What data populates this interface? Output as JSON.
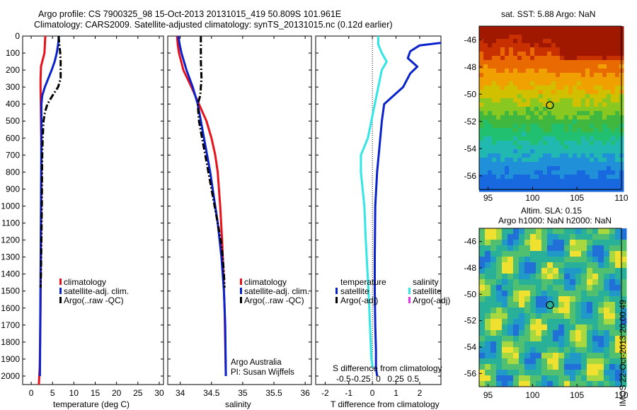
{
  "header": {
    "line1": "Argo profile: CS 7900325_98 15-Oct-2013 20131015_419 50.809S 101.961E",
    "line2": "Climatology: CARS2009. Satellite-adjusted climatology: synTS_20131015.nc (0.12d earlier)"
  },
  "map_sst": {
    "title": "sat. SST: 5.88 Argo: NaN"
  },
  "map_sla": {
    "title1": "Altim. SLA: 0.15",
    "title2": "Argo h1000: NaN h2000: NaN"
  },
  "stamp": "IMOS 22-Oct-2013 20:00:49",
  "credits": {
    "line1": "Argo Australia",
    "line2": "PI: Susan Wijffels"
  },
  "colors": {
    "climatology": "#e8101a",
    "satellite": "#0a22cc",
    "argo": "#000000",
    "sat_salinity": "#33e6e6",
    "argo_salinity": "#e633e6"
  },
  "legend_ts": [
    {
      "label": "climatology",
      "color": "#e8101a"
    },
    {
      "label": "satellite-adj. clim.",
      "color": "#0a22cc"
    },
    {
      "label": "Argo(..raw -QC)",
      "color": "#000000"
    }
  ],
  "legend_diff": {
    "temperature_header": "temperature",
    "salinity_header": "salinity",
    "t_items": [
      {
        "label": "satellite",
        "color": "#0a22cc"
      },
      {
        "label": "Argo(-adj)",
        "color": "#000000"
      }
    ],
    "s_items": [
      {
        "label": "satellite",
        "color": "#33e6e6"
      },
      {
        "label": "Argo(-adj)",
        "color": "#e633e6"
      }
    ]
  },
  "chart_data": [
    {
      "type": "line",
      "xlabel": "temperature (deg C)",
      "xlim": [
        -2,
        31
      ],
      "xticks": [
        "0",
        "5",
        "10",
        "15",
        "20",
        "25",
        "30"
      ],
      "ylim": [
        0,
        2050
      ],
      "yreversed": true,
      "yticks": [
        "0",
        "100",
        "200",
        "300",
        "400",
        "500",
        "600",
        "700",
        "800",
        "900",
        "1000",
        "1100",
        "1200",
        "1300",
        "1400",
        "1500",
        "1600",
        "1700",
        "1800",
        "1900",
        "2000"
      ],
      "series": [
        {
          "name": "climatology",
          "color": "#e8101a",
          "style": "solid",
          "x": [
            3.3,
            3.2,
            3.1,
            2.3,
            2.2,
            2.2,
            2.25,
            2.3,
            2.35,
            2.4,
            2.4,
            2.35,
            2.3,
            2.25,
            2.2,
            2.1,
            2.0,
            1.8
          ],
          "y": [
            0,
            50,
            100,
            180,
            250,
            300,
            400,
            500,
            600,
            700,
            800,
            1000,
            1200,
            1400,
            1600,
            1800,
            1950,
            2050
          ]
        },
        {
          "name": "satellite-adj. clim.",
          "color": "#0a22cc",
          "style": "solid",
          "x": [
            6.5,
            6.3,
            6.0,
            5.5,
            4.8,
            4.0,
            3.2,
            2.6,
            2.4,
            2.4,
            2.4,
            2.35,
            2.3,
            2.25,
            2.2,
            2.15,
            2.1,
            2.05
          ],
          "y": [
            0,
            50,
            100,
            150,
            200,
            250,
            300,
            350,
            400,
            500,
            600,
            800,
            1000,
            1200,
            1400,
            1600,
            1800,
            2000
          ]
        },
        {
          "name": "Argo(..raw -QC)",
          "color": "#000000",
          "style": "dashdot",
          "x": [
            6.4,
            6.6,
            6.8,
            6.9,
            6.9,
            6.3,
            5.0,
            3.8,
            3.2,
            2.9,
            2.7,
            2.6,
            2.55,
            2.5,
            2.4,
            2.3,
            2.2
          ],
          "y": [
            0,
            50,
            100,
            150,
            250,
            300,
            350,
            400,
            450,
            500,
            600,
            700,
            800,
            1000,
            1200,
            1400,
            1480
          ]
        }
      ]
    },
    {
      "type": "line",
      "xlabel": "salinity",
      "xlim": [
        33.8,
        36.1
      ],
      "xticks": [
        "34",
        "34.5",
        "35",
        "35.5",
        "36"
      ],
      "ylim": [
        0,
        2050
      ],
      "yreversed": true,
      "series": [
        {
          "name": "climatology",
          "color": "#e8101a",
          "style": "solid",
          "x": [
            33.95,
            33.96,
            33.98,
            34.05,
            34.18,
            34.3,
            34.42,
            34.5,
            34.56,
            34.6,
            34.64,
            34.67,
            34.69,
            34.71,
            34.72,
            34.73
          ],
          "y": [
            0,
            50,
            100,
            200,
            300,
            400,
            500,
            600,
            700,
            800,
            1000,
            1200,
            1400,
            1600,
            1800,
            2000
          ]
        },
        {
          "name": "satellite-adj. clim.",
          "color": "#0a22cc",
          "style": "solid",
          "x": [
            33.97,
            33.99,
            34.02,
            34.1,
            34.2,
            34.28,
            34.33,
            34.38,
            34.43,
            34.48,
            34.52,
            34.6,
            34.66,
            34.7,
            34.72,
            34.73
          ],
          "y": [
            0,
            50,
            100,
            200,
            300,
            400,
            500,
            600,
            700,
            800,
            900,
            1100,
            1300,
            1500,
            1700,
            2000
          ]
        },
        {
          "name": "Argo(..raw -QC)",
          "color": "#000000",
          "style": "dashdot",
          "x": [
            34.33,
            34.33,
            34.33,
            34.34,
            34.32,
            34.28,
            34.3,
            34.35,
            34.4,
            34.45,
            34.5,
            34.55,
            34.6,
            34.65,
            34.68,
            34.7,
            34.71
          ],
          "y": [
            0,
            50,
            150,
            250,
            350,
            400,
            500,
            600,
            700,
            800,
            900,
            1000,
            1100,
            1200,
            1300,
            1400,
            1480
          ]
        }
      ]
    },
    {
      "type": "line",
      "xlabel": "T difference from climatology",
      "xlim": [
        -2.4,
        2.9
      ],
      "xticks": [
        "-2",
        "-1",
        "0",
        "1",
        "2"
      ],
      "xlabel_top": "S difference from climatology",
      "xticks_top": [
        "-0.5",
        "-0.25",
        "0",
        "0.25",
        "0.5"
      ],
      "xlim_top": [
        -0.9,
        0.9
      ],
      "ylim": [
        0,
        2050
      ],
      "yreversed": true,
      "series": [
        {
          "name": "satellite",
          "quantity": "temperature",
          "color": "#0a22cc",
          "style": "solid",
          "x": [
            2.9,
            2.0,
            1.6,
            1.5,
            1.9,
            1.6,
            1.3,
            0.5,
            0.4,
            0.3,
            0.2,
            0.12,
            0.1,
            0.1,
            0.12,
            0.15,
            0.15,
            0.2
          ],
          "y": [
            40,
            55,
            90,
            130,
            180,
            220,
            300,
            400,
            500,
            650,
            800,
            1000,
            1300,
            1500,
            1700,
            1850,
            1950,
            2000
          ]
        },
        {
          "name": "satellite",
          "quantity": "salinity",
          "color": "#33e6e6",
          "style": "solid",
          "x": [
            0.0,
            0.0,
            0.05,
            0.12,
            0.05,
            0.0,
            -0.05,
            -0.1,
            -0.15,
            -0.25,
            -0.25,
            -0.2,
            -0.18,
            -0.14,
            -0.12,
            -0.1,
            -0.08
          ],
          "y": [
            0,
            50,
            100,
            150,
            200,
            300,
            400,
            500,
            600,
            700,
            800,
            1000,
            1200,
            1500,
            1700,
            1900,
            1950
          ]
        }
      ]
    },
    {
      "type": "heatmap",
      "title": "sat. SST: 5.88 Argo: NaN",
      "xlim": [
        94,
        110
      ],
      "ylim": [
        -57,
        -45
      ],
      "xticks": [
        "95",
        "100",
        "105",
        "110"
      ],
      "yticks": [
        "-46",
        "-48",
        "-50",
        "-52",
        "-54",
        "-56"
      ],
      "marker": {
        "x": 101.961,
        "y": -50.809
      }
    },
    {
      "type": "heatmap",
      "title": "Altim. SLA: 0.15 / Argo h1000: NaN h2000: NaN",
      "xlim": [
        94,
        110
      ],
      "ylim": [
        -57,
        -45
      ],
      "xticks": [
        "95",
        "100",
        "105",
        "110"
      ],
      "yticks": [
        "-46",
        "-48",
        "-50",
        "-52",
        "-54",
        "-56"
      ],
      "marker": {
        "x": 101.961,
        "y": -50.809
      }
    }
  ]
}
